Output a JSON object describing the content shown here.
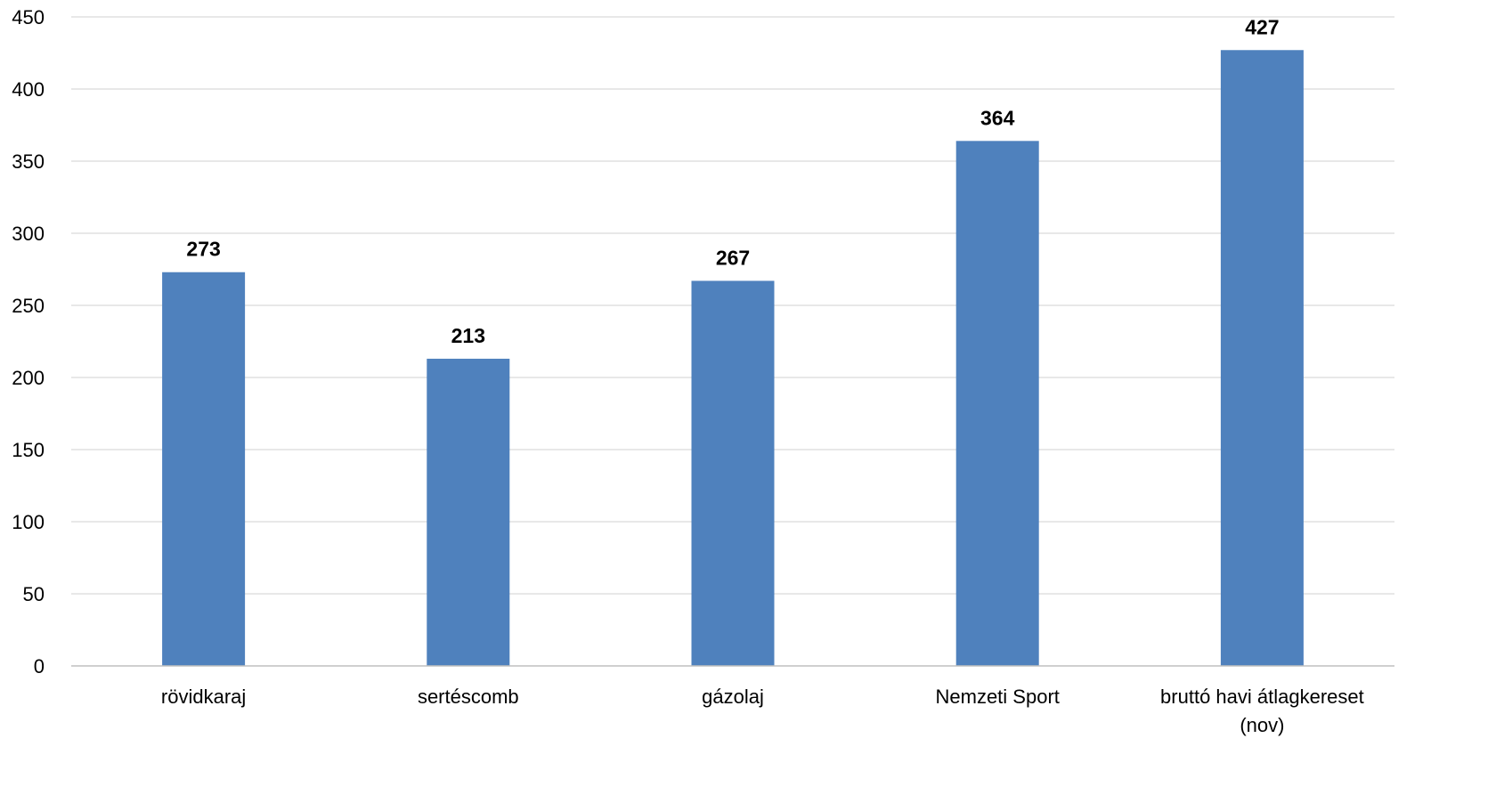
{
  "chart_data": {
    "type": "bar",
    "categories": [
      [
        "rövidkaraj"
      ],
      [
        "sertéscomb"
      ],
      [
        "gázolaj"
      ],
      [
        "Nemzeti Sport"
      ],
      [
        "bruttó havi átlagkereset",
        "(nov)"
      ]
    ],
    "values": [
      273,
      213,
      267,
      364,
      427
    ],
    "ylim": [
      0,
      450
    ],
    "yticks": [
      0,
      50,
      100,
      150,
      200,
      250,
      300,
      350,
      400,
      450
    ],
    "grid": true,
    "data_labels": true,
    "legend": "none",
    "title": "",
    "xlabel": "",
    "ylabel": ""
  },
  "colors": {
    "bar": "#4f81bd",
    "grid": "#d9d9d9",
    "axis": "#bfbfbf",
    "text": "#000000"
  }
}
